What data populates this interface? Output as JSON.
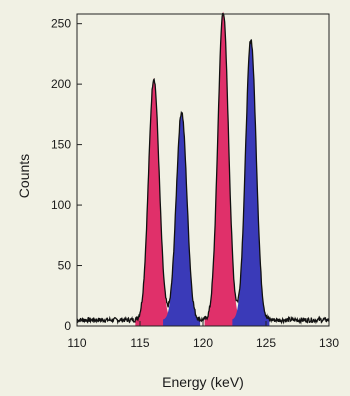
{
  "chart_data": {
    "type": "area",
    "xlabel": "Energy (keV)",
    "ylabel": "Counts",
    "xlim": [
      110,
      130
    ],
    "ylim": [
      0,
      255
    ],
    "x_ticks": [
      110,
      115,
      120,
      125,
      130
    ],
    "y_ticks": [
      0,
      50,
      100,
      150,
      200,
      250
    ],
    "grid": false,
    "colors": {
      "magenta": "#e0306a",
      "blue": "#3a3ab8",
      "outline": "#111111"
    },
    "baseline_counts": 5,
    "series": [
      {
        "color": "magenta",
        "peak_energy": 116.1,
        "peak_counts": 200,
        "width_kev": 0.42
      },
      {
        "color": "blue",
        "peak_energy": 118.3,
        "peak_counts": 172,
        "width_kev": 0.42
      },
      {
        "color": "magenta",
        "peak_energy": 121.6,
        "peak_counts": 255,
        "width_kev": 0.42
      },
      {
        "color": "blue",
        "peak_energy": 123.8,
        "peak_counts": 232,
        "width_kev": 0.42
      }
    ]
  }
}
